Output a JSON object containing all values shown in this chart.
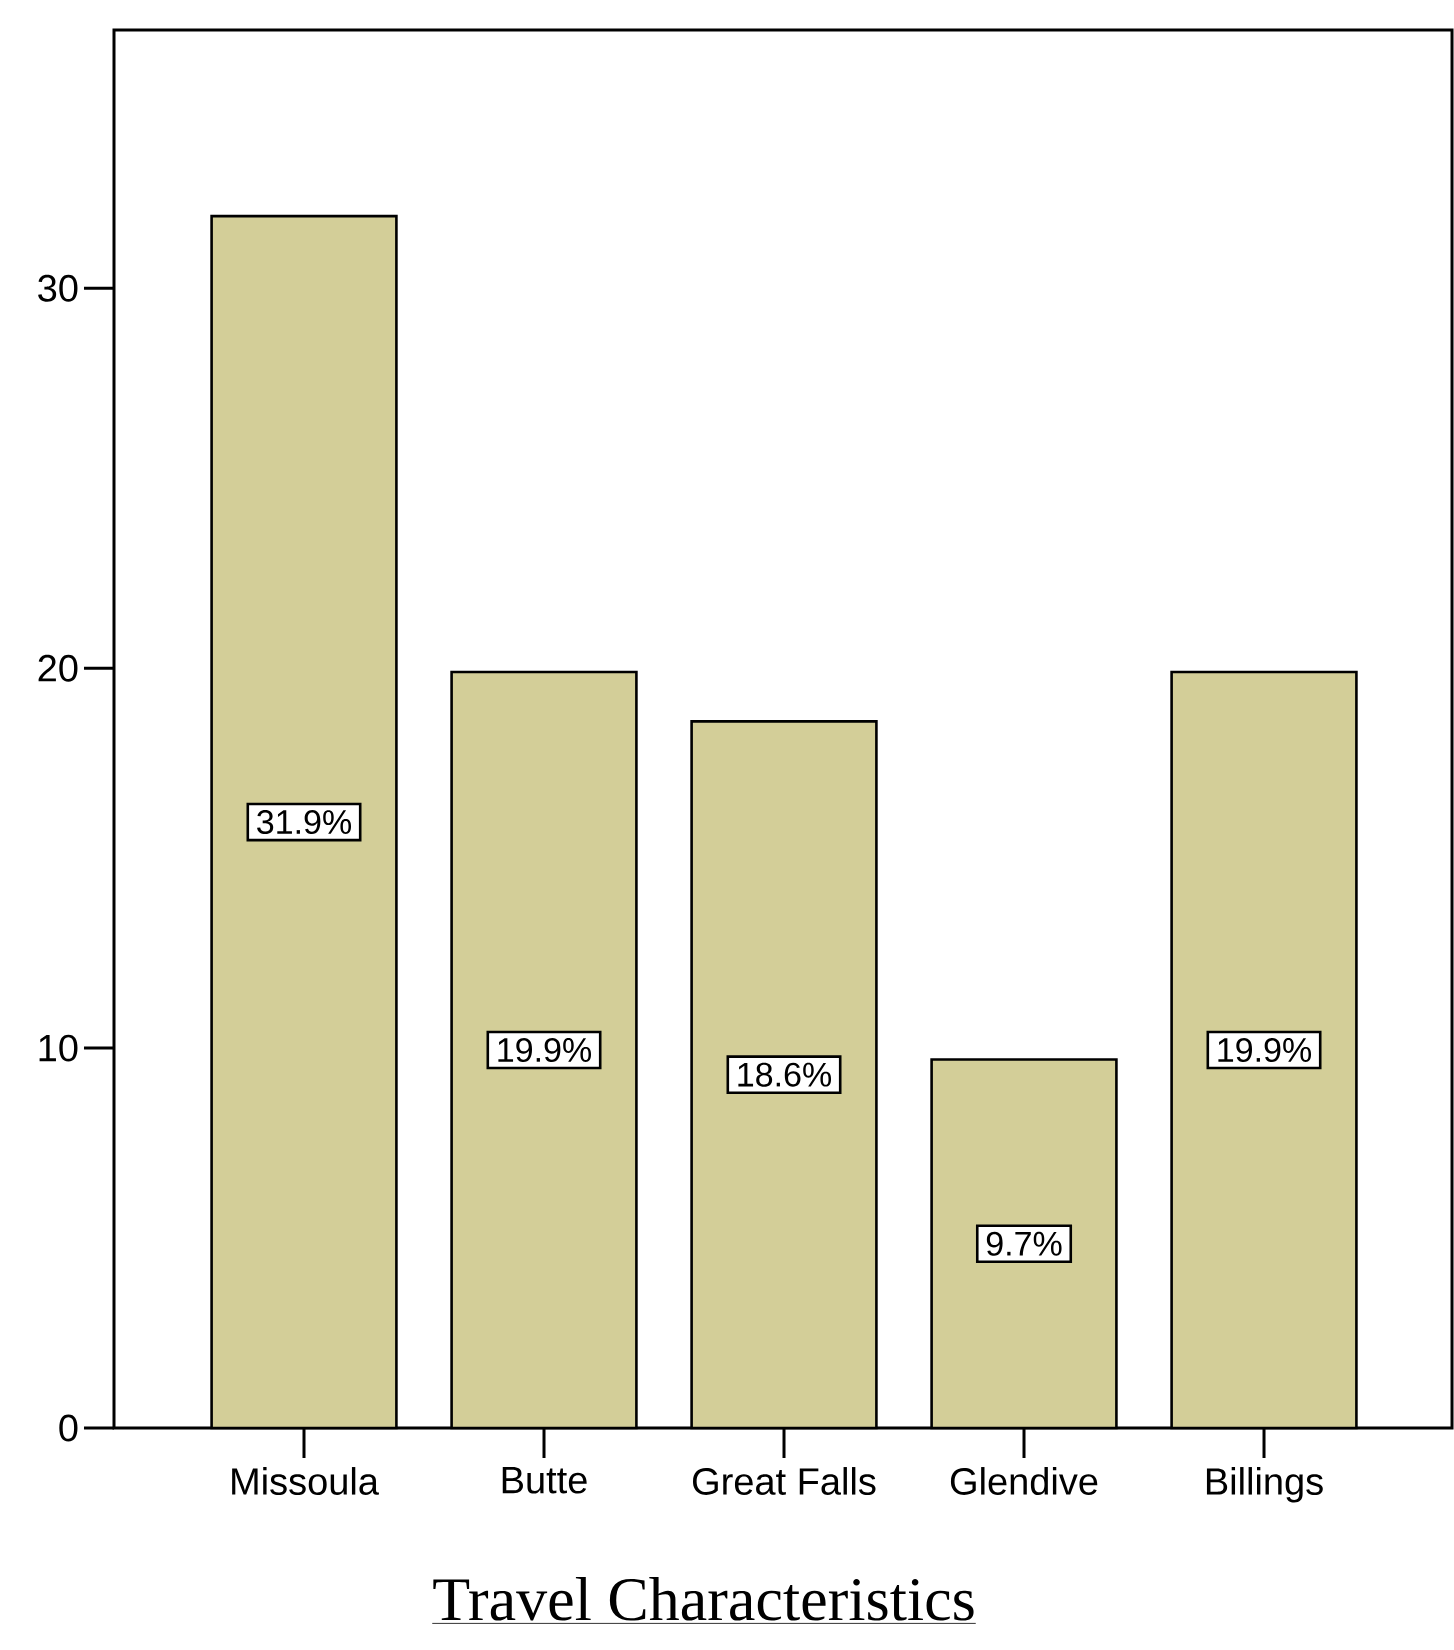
{
  "chart_data": {
    "type": "bar",
    "title": "Travel Characteristics",
    "categories": [
      "Missoula",
      "Butte",
      "Great Falls",
      "Glendive",
      "Billings"
    ],
    "values": [
      31.9,
      19.9,
      18.6,
      9.7,
      19.9
    ],
    "value_labels": [
      "31.9%",
      "19.9%",
      "18.6%",
      "9.7%",
      "19.9%"
    ],
    "color": "#d3ce98",
    "ylim": [
      0,
      36.8
    ],
    "yticks": [
      0,
      10,
      20,
      30
    ]
  }
}
